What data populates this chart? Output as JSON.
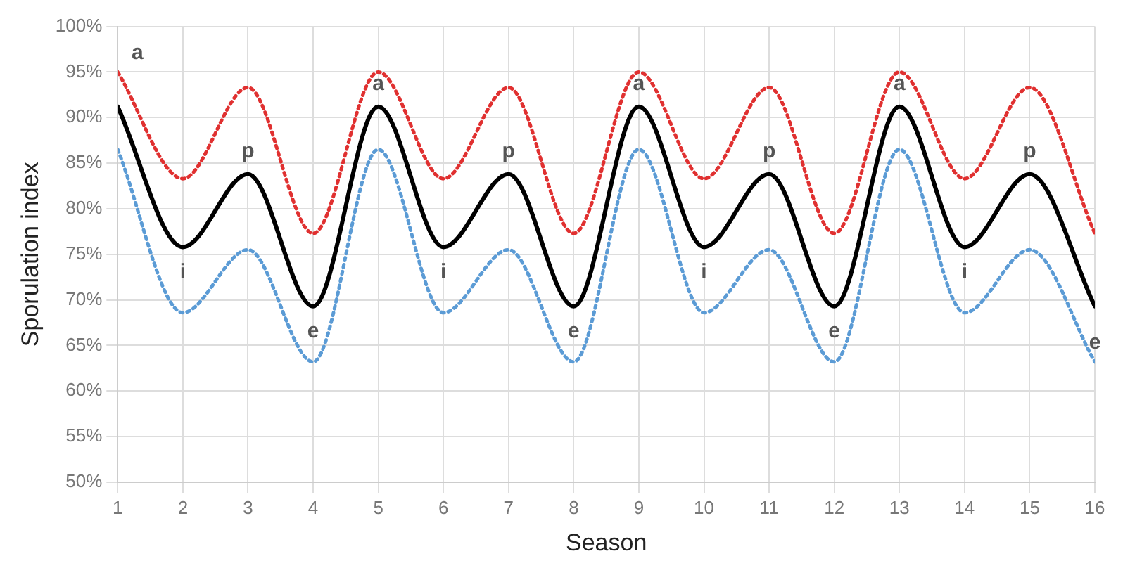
{
  "chart_data": {
    "type": "line",
    "xlabel": "Season",
    "ylabel": "Sporulation index",
    "x": [
      1,
      2,
      3,
      4,
      5,
      6,
      7,
      8,
      9,
      10,
      11,
      12,
      13,
      14,
      15,
      16
    ],
    "series": [
      {
        "color": "#e03030",
        "line_style": "dotted",
        "values": [
          95,
          83.3,
          93.3,
          77.3,
          95,
          83.3,
          93.3,
          77.3,
          95,
          83.3,
          93.3,
          77.3,
          95,
          83.3,
          93.3,
          77.3
        ]
      },
      {
        "color": "#000000",
        "line_style": "solid",
        "values": [
          91.2,
          75.8,
          83.8,
          69.3,
          91.2,
          75.8,
          83.8,
          69.3,
          91.2,
          75.8,
          83.8,
          69.3,
          91.2,
          75.8,
          83.8,
          69.3
        ]
      },
      {
        "color": "#5b9bd5",
        "line_style": "dotted",
        "values": [
          86.5,
          68.6,
          75.5,
          63.2,
          86.5,
          68.6,
          75.5,
          63.2,
          86.5,
          68.6,
          75.5,
          63.2,
          86.5,
          68.6,
          75.5,
          63.2
        ]
      }
    ],
    "xlim": [
      1,
      16
    ],
    "xticks": [
      1,
      2,
      3,
      4,
      5,
      6,
      7,
      8,
      9,
      10,
      11,
      12,
      13,
      14,
      15,
      16
    ],
    "ylim": [
      50,
      100
    ],
    "yticks": [
      {
        "value": 50,
        "label": "50%"
      },
      {
        "value": 55,
        "label": "55%"
      },
      {
        "value": 60,
        "label": "60%"
      },
      {
        "value": 65,
        "label": "65%"
      },
      {
        "value": 70,
        "label": "70%"
      },
      {
        "value": 75,
        "label": "75%"
      },
      {
        "value": 80,
        "label": "80%"
      },
      {
        "value": 85,
        "label": "85%"
      },
      {
        "value": 90,
        "label": "90%"
      },
      {
        "value": 95,
        "label": "95%"
      },
      {
        "value": 100,
        "label": "100%"
      }
    ],
    "grid": true,
    "legend": false,
    "marker": "none",
    "annotations": [
      {
        "text": "a",
        "x": 1,
        "y": 91.2
      },
      {
        "text": "i",
        "x": 2,
        "y": 75.8
      },
      {
        "text": "p",
        "x": 3,
        "y": 83.8
      },
      {
        "text": "e",
        "x": 4,
        "y": 69.3
      },
      {
        "text": "a",
        "x": 5,
        "y": 91.2
      },
      {
        "text": "i",
        "x": 6,
        "y": 75.8
      },
      {
        "text": "p",
        "x": 7,
        "y": 83.8
      },
      {
        "text": "e",
        "x": 8,
        "y": 69.3
      },
      {
        "text": "a",
        "x": 9,
        "y": 91.2
      },
      {
        "text": "i",
        "x": 10,
        "y": 75.8
      },
      {
        "text": "p",
        "x": 11,
        "y": 83.8
      },
      {
        "text": "e",
        "x": 12,
        "y": 69.3
      },
      {
        "text": "a",
        "x": 13,
        "y": 91.2
      },
      {
        "text": "i",
        "x": 14,
        "y": 75.8
      },
      {
        "text": "p",
        "x": 15,
        "y": 83.8
      },
      {
        "text": "e",
        "x": 16,
        "y": 69.3
      }
    ]
  }
}
